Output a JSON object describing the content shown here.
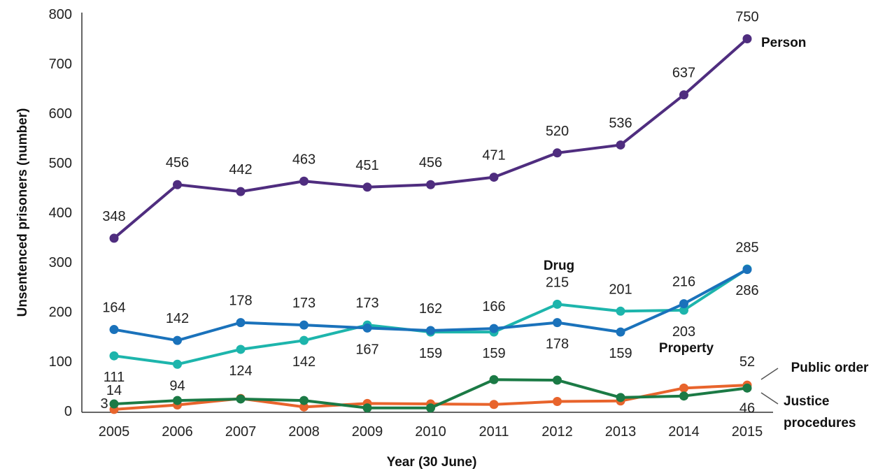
{
  "chart_data": {
    "type": "line",
    "title": "",
    "xlabel": "Year (30 June)",
    "ylabel": "Unsentenced prisoners (number)",
    "ylim": [
      0,
      800
    ],
    "yticks": [
      0,
      100,
      200,
      300,
      400,
      500,
      600,
      700,
      800
    ],
    "grid": false,
    "legend": "none (series labelled directly on the plot)",
    "categories": [
      "2005",
      "2006",
      "2007",
      "2008",
      "2009",
      "2010",
      "2011",
      "2012",
      "2013",
      "2014",
      "2015"
    ],
    "series": [
      {
        "name": "Person",
        "color": "#4f2d7f",
        "values": [
          348,
          456,
          442,
          463,
          451,
          456,
          471,
          520,
          536,
          637,
          750
        ],
        "labels": [
          "348",
          "456",
          "442",
          "463",
          "451",
          "456",
          "471",
          "520",
          "536",
          "637",
          "750"
        ]
      },
      {
        "name": "Drug",
        "color": "#1db5ac",
        "values": [
          111,
          94,
          124,
          142,
          173,
          159,
          159,
          215,
          201,
          203,
          286
        ],
        "labels": [
          "111",
          "94",
          "124",
          "142",
          "173",
          "159",
          "159",
          "215",
          "201",
          "203",
          "286"
        ]
      },
      {
        "name": "Property",
        "color": "#1a72bb",
        "values": [
          164,
          142,
          178,
          173,
          167,
          162,
          166,
          178,
          159,
          216,
          285
        ],
        "labels": [
          "164",
          "142",
          "178",
          "173",
          "167",
          "162",
          "166",
          "178",
          "159",
          "216",
          "285"
        ]
      },
      {
        "name": "Public order",
        "color": "#e8642c",
        "values": [
          3,
          12,
          25,
          8,
          15,
          14,
          13,
          19,
          20,
          46,
          52
        ],
        "labels": [
          "3",
          "",
          "",
          "",
          "",
          "",
          "",
          "",
          "",
          "",
          "52"
        ]
      },
      {
        "name": "Justice procedures",
        "color": "#1b7a45",
        "values": [
          14,
          21,
          24,
          21,
          6,
          6,
          63,
          62,
          27,
          30,
          46
        ],
        "labels": [
          "14",
          "",
          "",
          "",
          "",
          "",
          "",
          "",
          "",
          "",
          "46"
        ]
      }
    ]
  }
}
